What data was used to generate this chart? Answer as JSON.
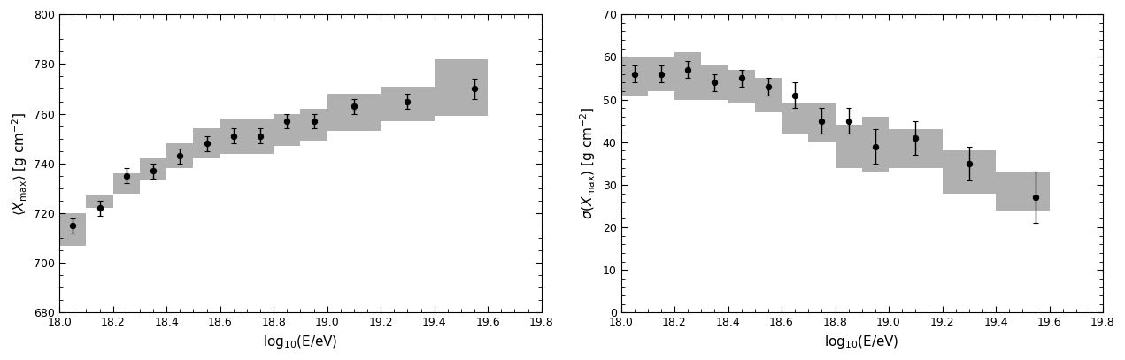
{
  "left": {
    "x": [
      18.05,
      18.15,
      18.25,
      18.35,
      18.45,
      18.55,
      18.65,
      18.75,
      18.85,
      18.95,
      19.1,
      19.3,
      19.55
    ],
    "y": [
      715,
      722,
      735,
      737,
      743,
      748,
      751,
      751,
      757,
      757,
      763,
      765,
      770
    ],
    "yerr_lo": [
      3,
      3,
      3,
      3,
      3,
      3,
      3,
      3,
      3,
      3,
      3,
      3,
      4
    ],
    "yerr_hi": [
      3,
      3,
      3,
      3,
      3,
      3,
      3,
      3,
      3,
      3,
      3,
      3,
      4
    ],
    "band_x": [
      18.0,
      18.1,
      18.1,
      18.2,
      18.2,
      18.3,
      18.3,
      18.4,
      18.4,
      18.5,
      18.5,
      18.6,
      18.6,
      18.7,
      18.7,
      18.8,
      18.8,
      18.9,
      18.9,
      19.0,
      19.0,
      19.2,
      19.2,
      19.4,
      19.4,
      19.6
    ],
    "band_lo": [
      707,
      707,
      722,
      722,
      728,
      728,
      733,
      733,
      738,
      738,
      742,
      742,
      744,
      744,
      744,
      744,
      747,
      747,
      749,
      749,
      753,
      753,
      757,
      757,
      759,
      759
    ],
    "band_hi": [
      720,
      720,
      727,
      727,
      736,
      736,
      742,
      742,
      748,
      748,
      754,
      754,
      758,
      758,
      758,
      758,
      760,
      760,
      762,
      762,
      768,
      768,
      771,
      771,
      782,
      782
    ],
    "ylabel": "$\\langle X_{\\rm max}\\rangle$ [g cm$^{-2}$]",
    "xlabel": "log$_{10}$(E/eV)",
    "xlim": [
      18.0,
      19.8
    ],
    "ylim": [
      680,
      800
    ],
    "yticks": [
      680,
      700,
      720,
      740,
      760,
      780,
      800
    ]
  },
  "right": {
    "x": [
      18.05,
      18.15,
      18.25,
      18.35,
      18.45,
      18.55,
      18.65,
      18.75,
      18.85,
      18.95,
      19.1,
      19.3,
      19.55
    ],
    "y": [
      56,
      56,
      57,
      54,
      55,
      53,
      51,
      45,
      45,
      39,
      41,
      35,
      27
    ],
    "yerr_lo": [
      2,
      2,
      2,
      2,
      2,
      2,
      3,
      3,
      3,
      4,
      4,
      4,
      6
    ],
    "yerr_hi": [
      2,
      2,
      2,
      2,
      2,
      2,
      3,
      3,
      3,
      4,
      4,
      4,
      6
    ],
    "band_x": [
      18.0,
      18.1,
      18.1,
      18.2,
      18.2,
      18.3,
      18.3,
      18.4,
      18.4,
      18.5,
      18.5,
      18.6,
      18.6,
      18.7,
      18.7,
      18.8,
      18.8,
      18.9,
      18.9,
      19.0,
      19.0,
      19.2,
      19.2,
      19.4,
      19.4,
      19.6
    ],
    "band_lo": [
      51,
      51,
      52,
      52,
      50,
      50,
      50,
      50,
      49,
      49,
      47,
      47,
      42,
      42,
      40,
      40,
      34,
      34,
      33,
      33,
      34,
      34,
      28,
      28,
      24,
      24
    ],
    "band_hi": [
      60,
      60,
      60,
      60,
      61,
      61,
      58,
      58,
      57,
      57,
      55,
      55,
      49,
      49,
      49,
      49,
      44,
      44,
      46,
      46,
      43,
      43,
      38,
      38,
      33,
      33
    ],
    "ylabel": "$\\sigma(X_{\\rm max})$ [g cm$^{-2}$]",
    "xlabel": "log$_{10}$(E/eV)",
    "xlim": [
      18.0,
      19.8
    ],
    "ylim": [
      0,
      70
    ],
    "yticks": [
      0,
      10,
      20,
      30,
      40,
      50,
      60,
      70
    ]
  },
  "band_color": "#b0b0b0",
  "point_color": "black",
  "figure_width": 12.71,
  "figure_height": 4.07,
  "fontsize_ticks": 9,
  "fontsize_label": 11
}
